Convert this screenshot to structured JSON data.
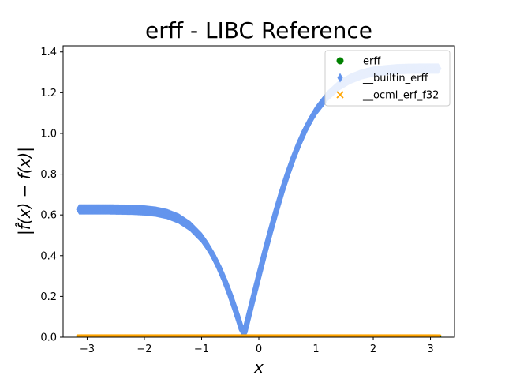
{
  "chart_data": {
    "type": "scatter",
    "title": "erff - LIBC Reference",
    "xlabel": "x",
    "ylabel": "|f̂(x) − f(x)|",
    "xlim": [
      -3.42,
      3.42
    ],
    "ylim": [
      0.0,
      1.43
    ],
    "x_ticks": [
      -3,
      -2,
      -1,
      0,
      1,
      2,
      3
    ],
    "x_tick_labels": [
      "−3",
      "−2",
      "−1",
      "0",
      "1",
      "2",
      "3"
    ],
    "y_ticks": [
      0.0,
      0.2,
      0.4,
      0.6,
      0.8,
      1.0,
      1.2,
      1.4
    ],
    "y_tick_labels": [
      "0.0",
      "0.2",
      "0.4",
      "0.6",
      "0.8",
      "1.0",
      "1.2",
      "1.4"
    ],
    "grid": false,
    "legend_position": "top-right",
    "series": [
      {
        "name": "erff",
        "marker": "circle",
        "color": "#008000",
        "x": [
          -3.1416,
          3.1416
        ],
        "y": [
          0.0,
          0.0
        ]
      },
      {
        "name": "__builtin_erff",
        "marker": "thin_diamond",
        "color": "#6495ED",
        "x": [
          -3.14,
          -3.0,
          -2.8,
          -2.6,
          -2.4,
          -2.2,
          -2.0,
          -1.8,
          -1.6,
          -1.4,
          -1.2,
          -1.0,
          -0.9,
          -0.8,
          -0.7,
          -0.6,
          -0.5,
          -0.4,
          -0.35,
          -0.3,
          -0.25,
          -0.2,
          -0.1,
          0.0,
          0.1,
          0.2,
          0.3,
          0.4,
          0.5,
          0.6,
          0.7,
          0.8,
          0.9,
          1.0,
          1.2,
          1.4,
          1.6,
          1.8,
          2.0,
          2.2,
          2.4,
          2.6,
          2.8,
          3.0,
          3.14
        ],
        "y": [
          0.627,
          0.627,
          0.627,
          0.627,
          0.626,
          0.625,
          0.622,
          0.616,
          0.604,
          0.582,
          0.545,
          0.488,
          0.448,
          0.401,
          0.345,
          0.28,
          0.207,
          0.125,
          0.082,
          0.037,
          0.022,
          0.078,
          0.19,
          0.301,
          0.411,
          0.516,
          0.616,
          0.711,
          0.798,
          0.877,
          0.948,
          1.011,
          1.065,
          1.112,
          1.184,
          1.235,
          1.268,
          1.29,
          1.303,
          1.31,
          1.315,
          1.317,
          1.318,
          1.318,
          1.318
        ]
      },
      {
        "name": "__ocml_erf_f32",
        "marker": "x",
        "color": "#FFA500",
        "x": [
          -3.1416,
          3.1416
        ],
        "y": [
          0.0,
          0.0
        ]
      }
    ]
  }
}
